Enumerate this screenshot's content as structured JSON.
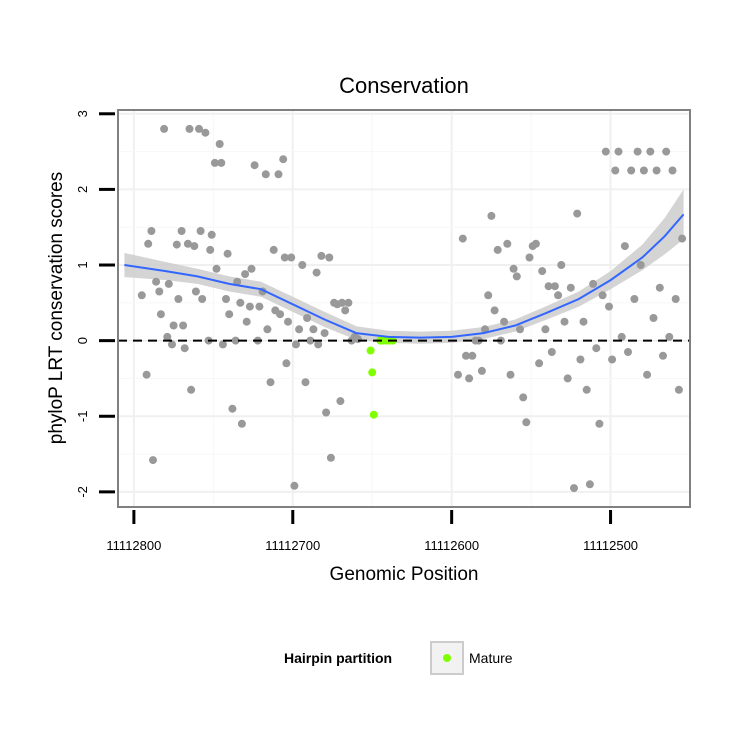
{
  "chart_data": {
    "type": "scatter",
    "title": "Conservation",
    "xlabel": "Genomic Position",
    "ylabel": "phyloP LRT conservation scores",
    "x_reversed": true,
    "xlim": [
      11112450,
      11112810
    ],
    "ylim": [
      -2.2,
      3.05
    ],
    "x_ticks": [
      11112800,
      11112700,
      11112600,
      11112500
    ],
    "x_tick_labels": [
      "11112800",
      "11112700",
      "11112600",
      "11112500"
    ],
    "y_ticks": [
      -2,
      -1,
      0,
      1,
      2,
      3
    ],
    "y_tick_labels": [
      "-2",
      "-1",
      "0",
      "1",
      "2",
      "3"
    ],
    "grid": true,
    "reference_line": {
      "y": 0,
      "style": "dashed"
    },
    "legend": {
      "title": "Hairpin partition",
      "position": "bottom",
      "entries": [
        {
          "label": "Mature",
          "color": "#7fff00"
        }
      ]
    },
    "colors": {
      "points": "#999999",
      "mature": "#7fff00",
      "smooth": "#3366ff",
      "band": "#cccccc",
      "panel_border": "#808080"
    },
    "series": [
      {
        "role": "other",
        "points": [
          [
            11112792,
            -0.45
          ],
          [
            11112788,
            -1.58
          ],
          [
            11112795,
            0.6
          ],
          [
            11112791,
            1.28
          ],
          [
            11112789,
            1.45
          ],
          [
            11112786,
            0.78
          ],
          [
            11112784,
            0.65
          ],
          [
            11112783,
            0.35
          ],
          [
            11112781,
            2.8
          ],
          [
            11112779,
            0.05
          ],
          [
            11112778,
            0.75
          ],
          [
            11112776,
            -0.05
          ],
          [
            11112775,
            0.2
          ],
          [
            11112773,
            1.27
          ],
          [
            11112772,
            0.55
          ],
          [
            11112770,
            1.45
          ],
          [
            11112769,
            0.2
          ],
          [
            11112768,
            -0.1
          ],
          [
            11112766,
            1.28
          ],
          [
            11112765,
            2.8
          ],
          [
            11112764,
            -0.65
          ],
          [
            11112762,
            1.25
          ],
          [
            11112761,
            0.65
          ],
          [
            11112759,
            2.8
          ],
          [
            11112758,
            1.45
          ],
          [
            11112757,
            0.55
          ],
          [
            11112755,
            2.75
          ],
          [
            11112753,
            0.0
          ],
          [
            11112752,
            1.2
          ],
          [
            11112751,
            1.4
          ],
          [
            11112749,
            2.35
          ],
          [
            11112748,
            0.95
          ],
          [
            11112746,
            2.6
          ],
          [
            11112745,
            2.35
          ],
          [
            11112744,
            -0.05
          ],
          [
            11112742,
            0.55
          ],
          [
            11112741,
            1.15
          ],
          [
            11112740,
            0.35
          ],
          [
            11112738,
            -0.9
          ],
          [
            11112736,
            0.0
          ],
          [
            11112735,
            0.78
          ],
          [
            11112733,
            0.5
          ],
          [
            11112732,
            -1.1
          ],
          [
            11112730,
            0.88
          ],
          [
            11112729,
            0.25
          ],
          [
            11112727,
            0.45
          ],
          [
            11112726,
            0.95
          ],
          [
            11112724,
            2.32
          ],
          [
            11112722,
            0.0
          ],
          [
            11112721,
            0.45
          ],
          [
            11112719,
            0.65
          ],
          [
            11112717,
            2.2
          ],
          [
            11112716,
            0.15
          ],
          [
            11112714,
            -0.55
          ],
          [
            11112712,
            1.2
          ],
          [
            11112711,
            0.4
          ],
          [
            11112709,
            2.2
          ],
          [
            11112708,
            0.35
          ],
          [
            11112706,
            2.4
          ],
          [
            11112705,
            1.1
          ],
          [
            11112704,
            -0.3
          ],
          [
            11112703,
            0.25
          ],
          [
            11112701,
            1.1
          ],
          [
            11112699,
            -1.92
          ],
          [
            11112698,
            -0.05
          ],
          [
            11112696,
            0.15
          ],
          [
            11112694,
            1.0
          ],
          [
            11112692,
            -0.55
          ],
          [
            11112691,
            0.3
          ],
          [
            11112689,
            0.0
          ],
          [
            11112687,
            0.15
          ],
          [
            11112685,
            0.9
          ],
          [
            11112684,
            -0.05
          ],
          [
            11112682,
            1.12
          ],
          [
            11112680,
            0.1
          ],
          [
            11112679,
            -0.95
          ],
          [
            11112677,
            1.1
          ],
          [
            11112676,
            -1.55
          ],
          [
            11112674,
            0.5
          ],
          [
            11112672,
            0.48
          ],
          [
            11112670,
            -0.8
          ],
          [
            11112669,
            0.5
          ],
          [
            11112667,
            0.4
          ],
          [
            11112665,
            0.5
          ],
          [
            11112663,
            0.0
          ],
          [
            11112661,
            0.05
          ],
          [
            11112659,
            0.02
          ],
          [
            11112596,
            -0.45
          ],
          [
            11112593,
            1.35
          ],
          [
            11112591,
            -0.2
          ],
          [
            11112589,
            -0.5
          ],
          [
            11112587,
            -0.2
          ],
          [
            11112585,
            0.0
          ],
          [
            11112583,
            0.0
          ],
          [
            11112581,
            -0.4
          ],
          [
            11112579,
            0.15
          ],
          [
            11112577,
            0.6
          ],
          [
            11112575,
            1.65
          ],
          [
            11112573,
            0.4
          ],
          [
            11112571,
            1.2
          ],
          [
            11112569,
            0.0
          ],
          [
            11112567,
            0.25
          ],
          [
            11112565,
            1.28
          ],
          [
            11112563,
            -0.45
          ],
          [
            11112561,
            0.95
          ],
          [
            11112559,
            0.85
          ],
          [
            11112557,
            0.15
          ],
          [
            11112555,
            -0.75
          ],
          [
            11112553,
            -1.08
          ],
          [
            11112551,
            1.1
          ],
          [
            11112549,
            1.25
          ],
          [
            11112547,
            1.28
          ],
          [
            11112545,
            -0.3
          ],
          [
            11112543,
            0.92
          ],
          [
            11112541,
            0.15
          ],
          [
            11112539,
            0.72
          ],
          [
            11112537,
            -0.15
          ],
          [
            11112535,
            0.72
          ],
          [
            11112533,
            0.6
          ],
          [
            11112531,
            1.0
          ],
          [
            11112529,
            0.25
          ],
          [
            11112527,
            -0.5
          ],
          [
            11112525,
            0.7
          ],
          [
            11112523,
            -1.95
          ],
          [
            11112521,
            1.68
          ],
          [
            11112519,
            -0.25
          ],
          [
            11112517,
            0.25
          ],
          [
            11112515,
            -0.65
          ],
          [
            11112513,
            -1.9
          ],
          [
            11112511,
            0.75
          ],
          [
            11112509,
            -0.1
          ],
          [
            11112507,
            -1.1
          ],
          [
            11112505,
            0.6
          ],
          [
            11112503,
            2.5
          ],
          [
            11112501,
            0.45
          ],
          [
            11112499,
            -0.25
          ],
          [
            11112497,
            2.25
          ],
          [
            11112495,
            2.5
          ],
          [
            11112493,
            0.05
          ],
          [
            11112491,
            1.25
          ],
          [
            11112489,
            -0.15
          ],
          [
            11112487,
            2.25
          ],
          [
            11112485,
            0.55
          ],
          [
            11112483,
            2.5
          ],
          [
            11112481,
            1.0
          ],
          [
            11112479,
            2.25
          ],
          [
            11112477,
            -0.45
          ],
          [
            11112475,
            2.5
          ],
          [
            11112473,
            0.3
          ],
          [
            11112471,
            2.25
          ],
          [
            11112469,
            0.7
          ],
          [
            11112467,
            -0.2
          ],
          [
            11112465,
            2.5
          ],
          [
            11112463,
            0.05
          ],
          [
            11112461,
            2.25
          ],
          [
            11112459,
            0.55
          ],
          [
            11112457,
            -0.65
          ],
          [
            11112455,
            1.35
          ]
        ]
      },
      {
        "role": "mature",
        "name": "Mature",
        "points": [
          [
            11112651,
            -0.13
          ],
          [
            11112650,
            -0.42
          ],
          [
            11112649,
            -0.98
          ],
          [
            11112645,
            0.0
          ],
          [
            11112643,
            0.0
          ],
          [
            11112641,
            0.0
          ],
          [
            11112639,
            0.0
          ],
          [
            11112637,
            0.0
          ]
        ]
      }
    ],
    "smooth": {
      "method": "loess",
      "fit": [
        [
          11112806,
          1.0
        ],
        [
          11112780,
          0.92
        ],
        [
          11112760,
          0.85
        ],
        [
          11112740,
          0.75
        ],
        [
          11112720,
          0.68
        ],
        [
          11112700,
          0.48
        ],
        [
          11112680,
          0.28
        ],
        [
          11112660,
          0.1
        ],
        [
          11112640,
          0.05
        ],
        [
          11112620,
          0.04
        ],
        [
          11112600,
          0.05
        ],
        [
          11112580,
          0.1
        ],
        [
          11112560,
          0.2
        ],
        [
          11112540,
          0.37
        ],
        [
          11112520,
          0.55
        ],
        [
          11112500,
          0.8
        ],
        [
          11112480,
          1.1
        ],
        [
          11112466,
          1.38
        ],
        [
          11112454,
          1.67
        ]
      ],
      "band_halfwidth": [
        0.16,
        0.12,
        0.1,
        0.1,
        0.1,
        0.1,
        0.1,
        0.09,
        0.08,
        0.08,
        0.08,
        0.08,
        0.08,
        0.09,
        0.1,
        0.12,
        0.17,
        0.24,
        0.33
      ]
    }
  }
}
